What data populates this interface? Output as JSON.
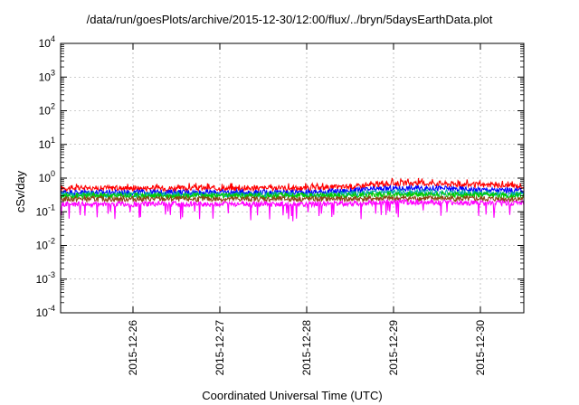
{
  "chart_data": {
    "type": "line",
    "title": "/data/run/goesPlots/archive/2015-12-30/12:00/flux/../bryn/5daysEarthData.plot",
    "xlabel": "Coordinated Universal Time (UTC)",
    "ylabel": "cSv/day",
    "yscale": "log",
    "ylim": [
      0.0001,
      10000
    ],
    "yticks": [
      {
        "base": "10",
        "exp": "-4",
        "value": 0.0001
      },
      {
        "base": "10",
        "exp": "-3",
        "value": 0.001
      },
      {
        "base": "10",
        "exp": "-2",
        "value": 0.01
      },
      {
        "base": "10",
        "exp": "-1",
        "value": 0.1
      },
      {
        "base": "10",
        "exp": "0",
        "value": 1
      },
      {
        "base": "10",
        "exp": "1",
        "value": 10
      },
      {
        "base": "10",
        "exp": "2",
        "value": 100
      },
      {
        "base": "10",
        "exp": "3",
        "value": 1000
      },
      {
        "base": "10",
        "exp": "4",
        "value": 10000
      }
    ],
    "xlim": [
      "2015-12-25 04:00",
      "2015-12-30 12:00"
    ],
    "xticks": [
      "2015-12-26",
      "2015-12-27",
      "2015-12-28",
      "2015-12-29",
      "2015-12-30"
    ],
    "grid": true,
    "series": [
      {
        "color": "#ff0000",
        "x": [
          "2015-12-25 04:00",
          "2015-12-26 00:00",
          "2015-12-27 00:00",
          "2015-12-28 00:00",
          "2015-12-28 12:00",
          "2015-12-29 00:00",
          "2015-12-29 12:00",
          "2015-12-30 00:00",
          "2015-12-30 12:00"
        ],
        "y": [
          0.5,
          0.5,
          0.5,
          0.5,
          0.55,
          0.7,
          0.7,
          0.62,
          0.58
        ]
      },
      {
        "color": "#0000ff",
        "x": [
          "2015-12-25 04:00",
          "2015-12-26 00:00",
          "2015-12-27 00:00",
          "2015-12-28 00:00",
          "2015-12-28 12:00",
          "2015-12-29 00:00",
          "2015-12-29 12:00",
          "2015-12-30 00:00",
          "2015-12-30 12:00"
        ],
        "y": [
          0.38,
          0.38,
          0.38,
          0.38,
          0.42,
          0.5,
          0.5,
          0.45,
          0.42
        ]
      },
      {
        "color": "#00aaaa",
        "x": [
          "2015-12-25 04:00",
          "2015-12-26 00:00",
          "2015-12-27 00:00",
          "2015-12-28 00:00",
          "2015-12-28 12:00",
          "2015-12-29 00:00",
          "2015-12-29 12:00",
          "2015-12-30 00:00",
          "2015-12-30 12:00"
        ],
        "y": [
          0.32,
          0.32,
          0.32,
          0.32,
          0.34,
          0.38,
          0.38,
          0.35,
          0.33
        ]
      },
      {
        "color": "#00cc00",
        "x": [
          "2015-12-25 04:00",
          "2015-12-26 00:00",
          "2015-12-27 00:00",
          "2015-12-28 00:00",
          "2015-12-28 12:00",
          "2015-12-29 00:00",
          "2015-12-29 12:00",
          "2015-12-30 00:00",
          "2015-12-30 12:00"
        ],
        "y": [
          0.3,
          0.3,
          0.3,
          0.3,
          0.31,
          0.33,
          0.33,
          0.31,
          0.3
        ]
      },
      {
        "color": "#8b4513",
        "x": [
          "2015-12-25 04:00",
          "2015-12-26 00:00",
          "2015-12-27 00:00",
          "2015-12-28 00:00",
          "2015-12-28 12:00",
          "2015-12-29 00:00",
          "2015-12-29 12:00",
          "2015-12-30 00:00",
          "2015-12-30 12:00"
        ],
        "y": [
          0.24,
          0.24,
          0.24,
          0.24,
          0.24,
          0.25,
          0.25,
          0.24,
          0.24
        ]
      },
      {
        "color": "#ff00ff",
        "x": [
          "2015-12-25 04:00",
          "2015-12-26 00:00",
          "2015-12-27 00:00",
          "2015-12-28 00:00",
          "2015-12-28 12:00",
          "2015-12-29 00:00",
          "2015-12-29 12:00",
          "2015-12-30 00:00",
          "2015-12-30 12:00"
        ],
        "y": [
          0.17,
          0.17,
          0.17,
          0.17,
          0.18,
          0.19,
          0.19,
          0.18,
          0.18
        ]
      }
    ]
  }
}
